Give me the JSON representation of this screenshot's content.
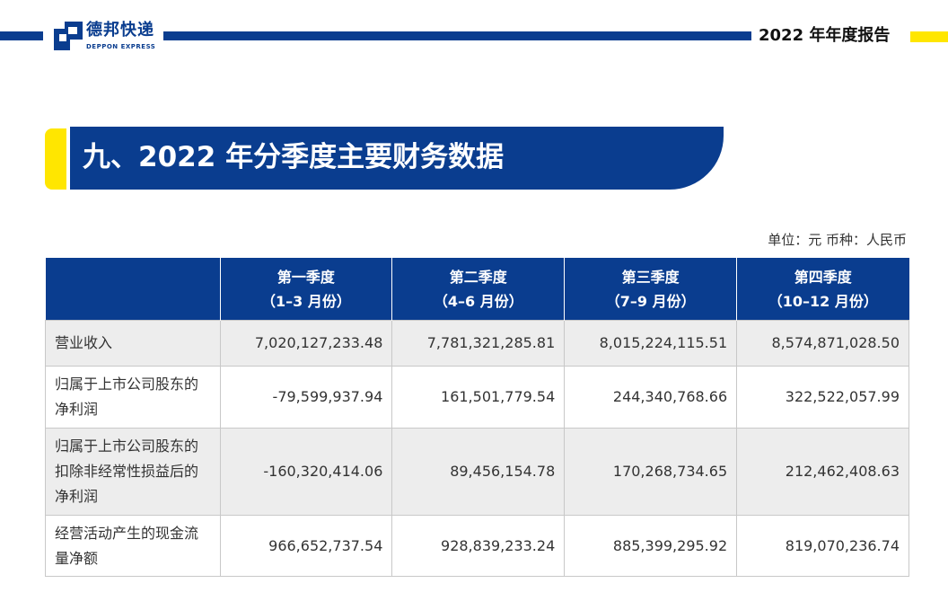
{
  "header": {
    "brand_cn": "德邦快递",
    "brand_en": "DEPPON EXPRESS",
    "report_title": "2022 年年度报告",
    "colors": {
      "brand_blue": "#0a3d8f",
      "accent_yellow": "#ffe600"
    }
  },
  "section": {
    "title": "九、2022 年分季度主要财务数据",
    "unit": "单位：元  币种：人民币"
  },
  "table": {
    "headers": [
      {
        "q": "",
        "m": ""
      },
      {
        "q": "第一季度",
        "m": "（1–3 月份）"
      },
      {
        "q": "第二季度",
        "m": "（4–6 月份）"
      },
      {
        "q": "第三季度",
        "m": "（7–9 月份）"
      },
      {
        "q": "第四季度",
        "m": "（10–12 月份）"
      }
    ],
    "rows": [
      {
        "label": "营业收入",
        "values": [
          "7,020,127,233.48",
          "7,781,321,285.81",
          "8,015,224,115.51",
          "8,574,871,028.50"
        ]
      },
      {
        "label": "归属于上市公司股东的净利润",
        "values": [
          "-79,599,937.94",
          "161,501,779.54",
          "244,340,768.66",
          "322,522,057.99"
        ]
      },
      {
        "label": "归属于上市公司股东的扣除非经常性损益后的净利润",
        "values": [
          "-160,320,414.06",
          "89,456,154.78",
          "170,268,734.65",
          "212,462,408.63"
        ]
      },
      {
        "label": "经营活动产生的现金流量净额",
        "values": [
          "966,652,737.54",
          "928,839,233.24",
          "885,399,295.92",
          "819,070,236.74"
        ]
      }
    ]
  }
}
